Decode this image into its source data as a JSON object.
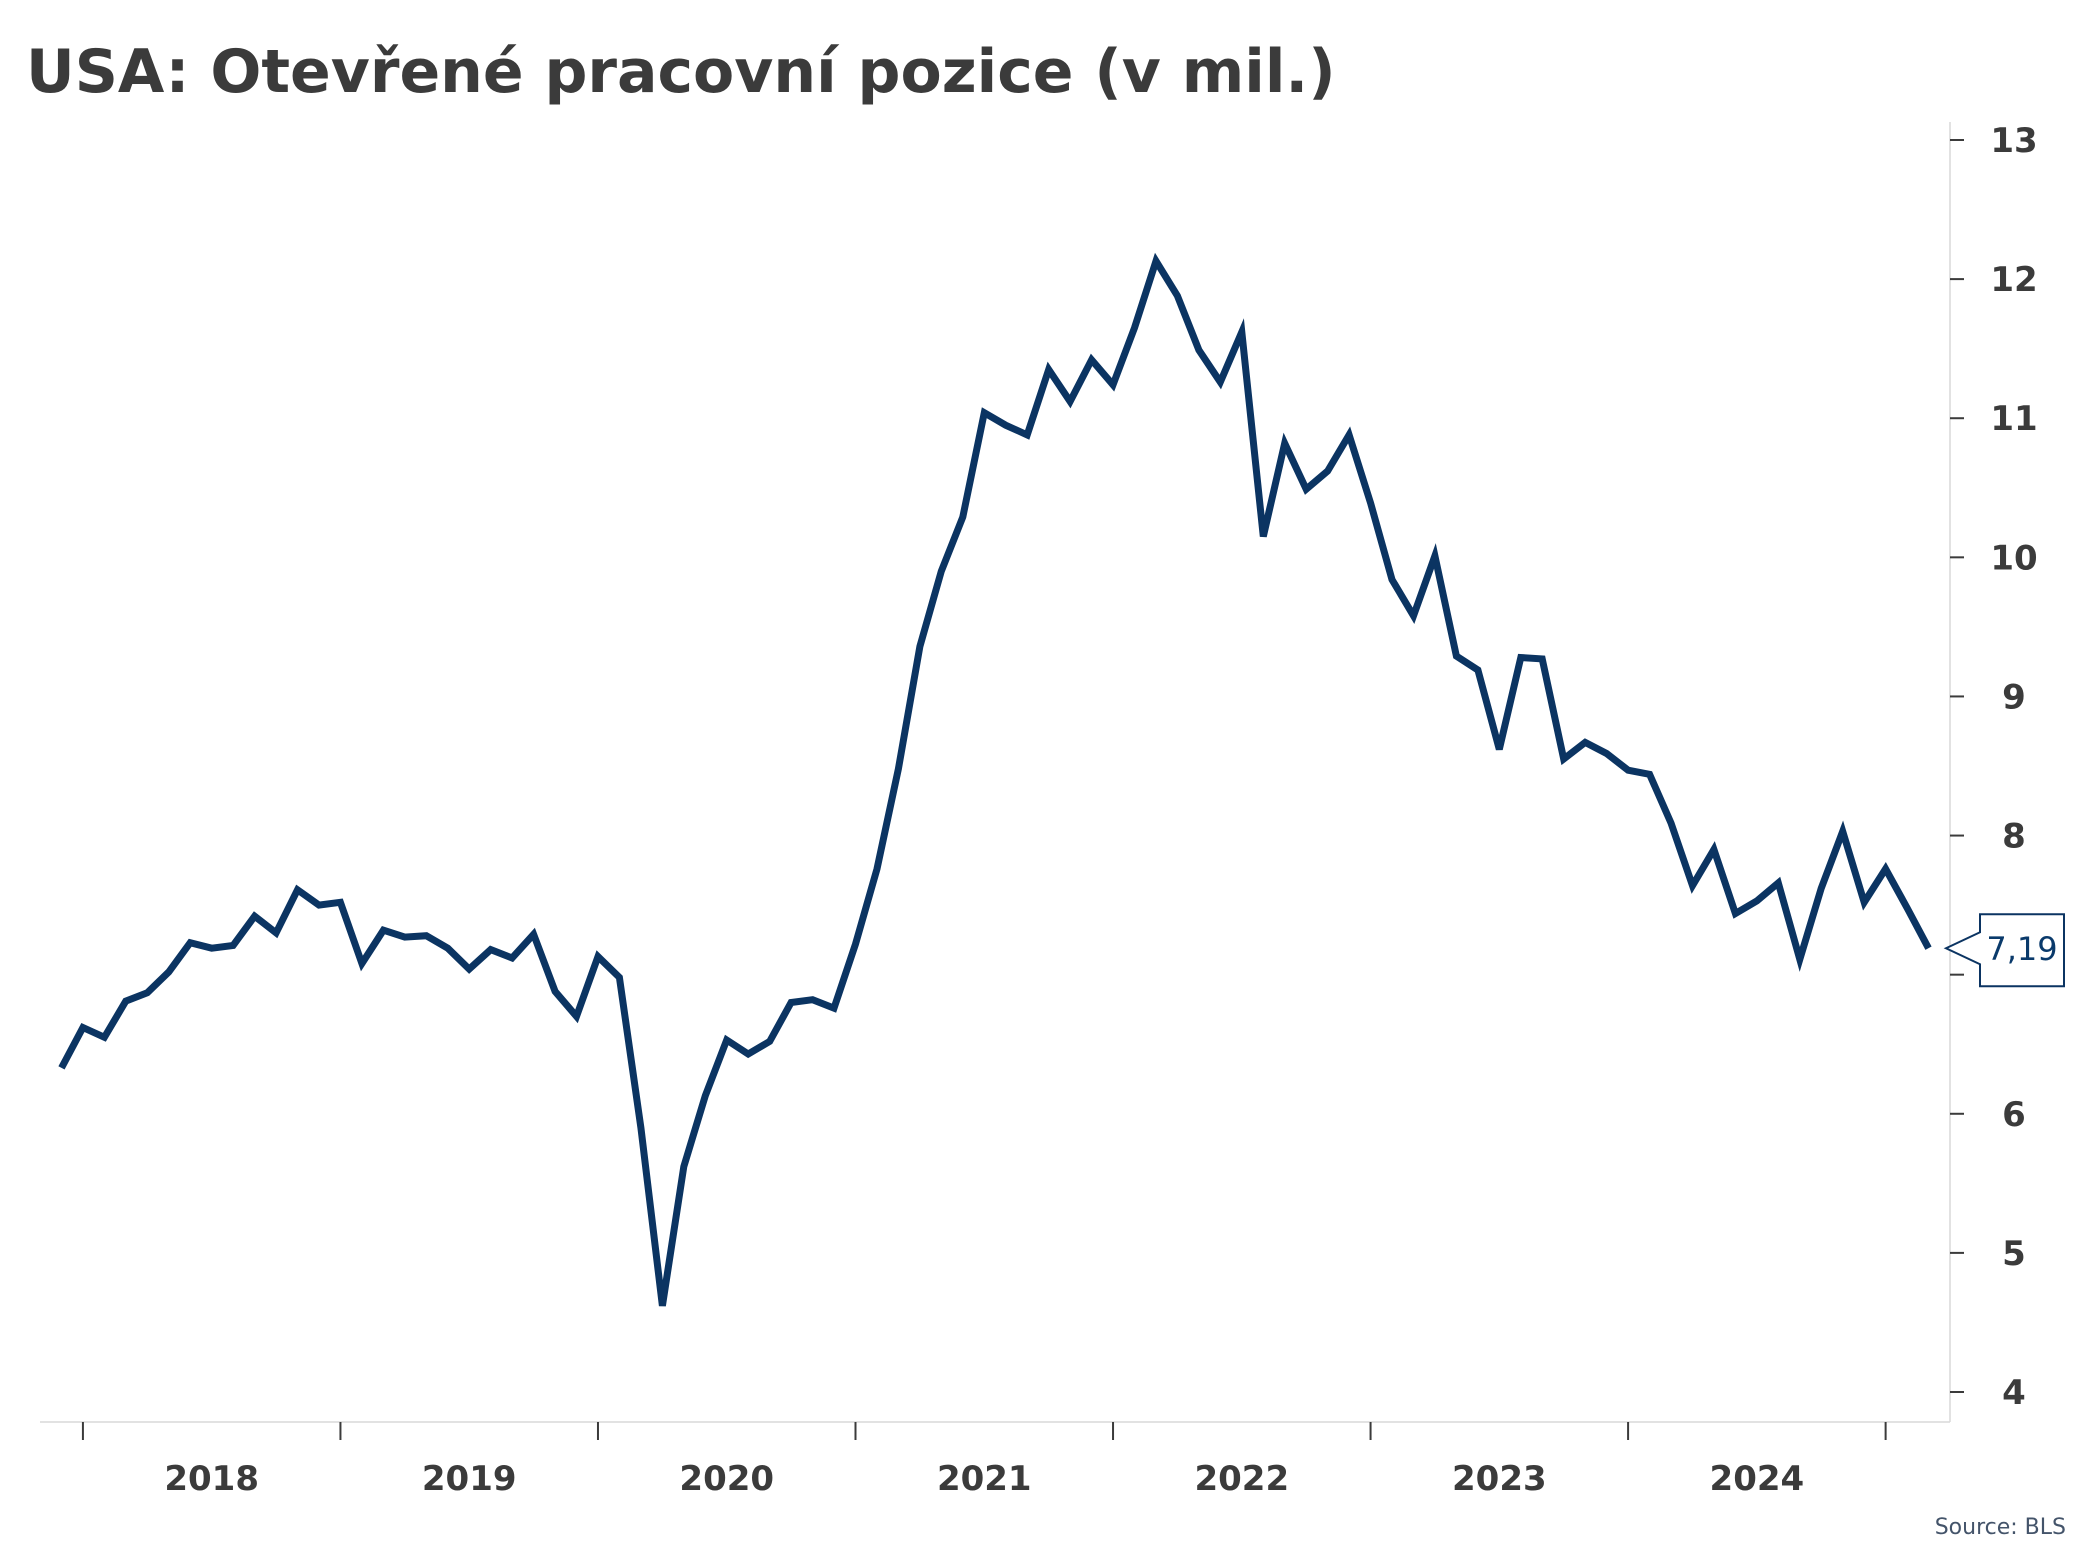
{
  "title": "USA: Otevřené pracovní pozice (v mil.)",
  "source": "Source: BLS",
  "colors": {
    "line": "#0b3462",
    "text": "#3b3b3b",
    "axis": "#3b3b3b",
    "callout_border": "#0b3462"
  },
  "chart_data": {
    "type": "line",
    "title": "USA: Otevřené pracovní pozice (v mil.)",
    "xlabel": "",
    "ylabel": "",
    "y_axis_position": "right",
    "grid": false,
    "ylim": [
      4,
      13
    ],
    "yticks": [
      4,
      5,
      6,
      7,
      8,
      9,
      10,
      11,
      12,
      13
    ],
    "x_start": "2017-12",
    "xlim": [
      "2017-11",
      "2025-04"
    ],
    "x_year_ticks": [
      "2018",
      "2019",
      "2020",
      "2021",
      "2022",
      "2023",
      "2024",
      "2025"
    ],
    "x_tick_labels": [
      "2018",
      "2019",
      "2020",
      "2021",
      "2022",
      "2023",
      "2024"
    ],
    "last_value_label": "7,19",
    "series": [
      {
        "values": [
          6.33,
          6.62,
          6.55,
          6.81,
          6.87,
          7.02,
          7.23,
          7.19,
          7.21,
          7.42,
          7.3,
          7.61,
          7.5,
          7.52,
          7.08,
          7.32,
          7.27,
          7.28,
          7.19,
          7.04,
          7.18,
          7.12,
          7.29,
          6.88,
          6.7,
          7.13,
          6.98,
          5.9,
          4.62,
          5.62,
          6.13,
          6.53,
          6.43,
          6.52,
          6.8,
          6.82,
          6.76,
          7.22,
          7.76,
          8.48,
          9.36,
          9.9,
          10.29,
          11.04,
          10.95,
          10.88,
          11.35,
          11.12,
          11.42,
          11.24,
          11.65,
          12.13,
          11.88,
          11.49,
          11.26,
          11.62,
          10.15,
          10.82,
          10.49,
          10.62,
          10.88,
          10.39,
          9.84,
          9.58,
          10.01,
          9.29,
          9.19,
          8.62,
          9.28,
          9.27,
          8.55,
          8.67,
          8.59,
          8.47,
          8.44,
          8.09,
          7.64,
          7.9,
          7.44,
          7.53,
          7.66,
          7.11,
          7.62,
          8.03,
          7.52,
          7.76,
          7.48,
          7.19
        ]
      }
    ]
  }
}
